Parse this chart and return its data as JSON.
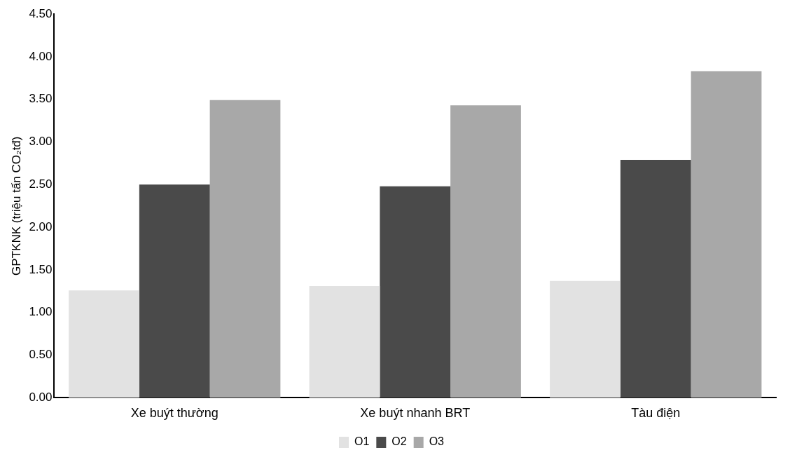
{
  "chart_data": {
    "type": "bar",
    "ylabel": "GPTKNK (triệu tấn CO₂tđ)",
    "categories": [
      "Xe buýt thường",
      "Xe buýt nhanh BRT",
      "Tàu điện"
    ],
    "series": [
      {
        "name": "O1",
        "color": "#e2e2e2",
        "values": [
          1.26,
          1.31,
          1.37
        ]
      },
      {
        "name": "O2",
        "color": "#4a4a4a",
        "values": [
          2.5,
          2.48,
          2.79
        ]
      },
      {
        "name": "O3",
        "color": "#a8a8a8",
        "values": [
          3.49,
          3.43,
          3.83
        ]
      }
    ],
    "ylim": [
      0,
      4.5
    ],
    "yticks": [
      {
        "value": 0,
        "label": "0.00"
      },
      {
        "value": 0.5,
        "label": "0.50"
      },
      {
        "value": 1,
        "label": "1.00"
      },
      {
        "value": 1.5,
        "label": "1.50"
      },
      {
        "value": 2,
        "label": "2.00"
      },
      {
        "value": 2.5,
        "label": "2.50"
      },
      {
        "value": 3,
        "label": "3.00"
      },
      {
        "value": 3.5,
        "label": "3.50"
      },
      {
        "value": 4,
        "label": "4.00"
      },
      {
        "value": 4.5,
        "label": "4.50"
      }
    ],
    "grid": false,
    "legend": "bottom"
  }
}
